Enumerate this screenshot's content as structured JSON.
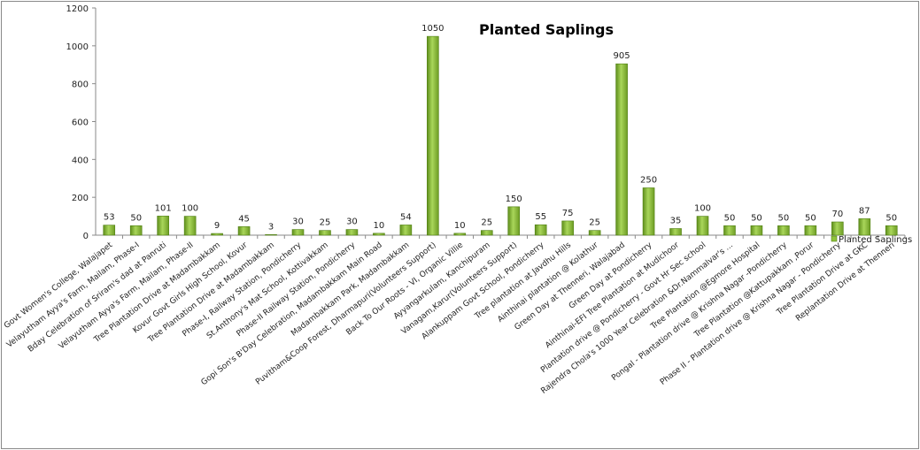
{
  "chart_data": {
    "type": "bar",
    "title": "Planted Saplings",
    "xlabel": "",
    "ylabel": "",
    "ylim": [
      0,
      1200
    ],
    "yticks": [
      0,
      200,
      400,
      600,
      800,
      1000,
      1200
    ],
    "grid": false,
    "legend_position": "right",
    "colors": {
      "bar": "#8fc33a",
      "bar_dark": "#4f7f12",
      "bar_light": "#c6e58a"
    },
    "categories": [
      "Govt Women's College, Walajapet",
      "Velayutham Ayya's Farm, Mailam, Phase-I",
      "Bday Celebration of Sriram's dad at Panruti",
      "Velayutham Ayya's Farm, Mailam, Phase-II",
      "Tree Plantation Drive at Madambakkam",
      "Kovur Govt Girls High School, Kovur",
      "Tree Plantation Drive at Madambakkam",
      "Phase-I, Railway Station, Pondicherry",
      "St.Anthony's Mat School, Kottivakkam",
      "Phase-II Railway Station, Pondicherry",
      "Gopi Son's B'Day Celebration, Madambakkam Main Road",
      "Madambakkam Park, Madambakkam",
      "Puvitham&Coop Forest, Dharmapuri(Volunteers Support)",
      "Back To Our Roots - VI, Organic Villie",
      "Ayyangarkulam, Kanchipuram",
      "Vanagam,Karur(Volunteers Support)",
      "Alankuppam Govt School, Pondicherry",
      "Tree plantation at Javdhu Hills",
      "Ainthinai plantation @ Kolathur",
      "Green Day at Thenneri, Walajabad",
      "Green Day at Pondicherry",
      "Ainthinai-EFI Tree Plantation at Mudichoor",
      "Plantation drive @ Pondicherry - Govt Hr Sec school",
      "Rajendra Chola's 1000 Year Celebration &Dr.Nammalvar's ...",
      "Tree Plantation @Egmore Hospital",
      "Pongal - Plantation drive @ Krishna Nagar -Pondicherry",
      "Tree Plantation @Kattupakkam ,Porur",
      "Phase II - Plantation drive @ Krishna Nagar - Pondicherry",
      "Tree Plantation Drive at GKC",
      "Replantation Drive at Thenneri"
    ],
    "series": [
      {
        "name": "Planted Saplings",
        "values": [
          53,
          50,
          101,
          100,
          9,
          45,
          3,
          30,
          25,
          30,
          10,
          54,
          1050,
          10,
          25,
          150,
          55,
          75,
          25,
          905,
          250,
          35,
          100,
          50,
          50,
          50,
          50,
          70,
          87,
          50
        ]
      }
    ]
  }
}
